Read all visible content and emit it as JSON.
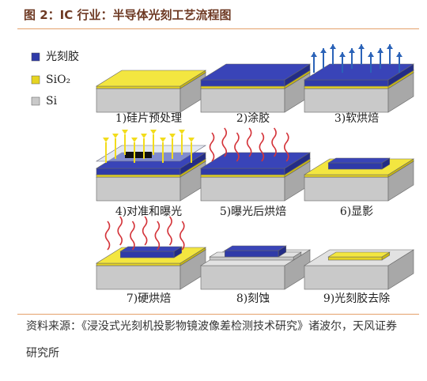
{
  "header": {
    "title": "图 2：IC 行业：半导体光刻工艺流程图"
  },
  "legend": [
    {
      "label": "光刻胶"
    },
    {
      "label": "SiO₂"
    },
    {
      "label": "Si"
    }
  ],
  "steps": [
    {
      "label": "1)硅片预处理"
    },
    {
      "label": "2)涂胶"
    },
    {
      "label": "3)软烘焙"
    },
    {
      "label": "4)对准和曝光"
    },
    {
      "label": "5)曝光后烘焙"
    },
    {
      "label": "6)显影"
    },
    {
      "label": "7)硬烘焙"
    },
    {
      "label": "8)刻蚀"
    },
    {
      "label": "9)光刻胶去除"
    }
  ],
  "source": "资料来源：《浸没式光刻机投影物镜波像差检测技术研究》诸波尔，天风证券研究所"
}
